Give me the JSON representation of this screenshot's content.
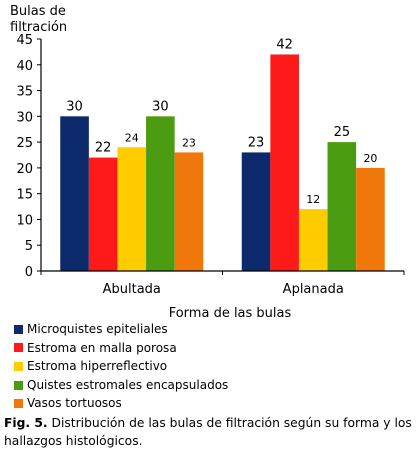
{
  "chart_data": {
    "type": "bar",
    "ylabel": "Bulas de\nfiltración",
    "xlabel": "Forma de las bulas",
    "ylim": [
      0,
      45
    ],
    "yticks": [
      0,
      5,
      10,
      15,
      20,
      25,
      30,
      35,
      40,
      45
    ],
    "categories": [
      "Abultada",
      "Aplanada"
    ],
    "series": [
      {
        "name": "Microquistes epiteliales",
        "color": "#0c2a6b",
        "values": [
          30,
          23
        ]
      },
      {
        "name": "Estroma en malla porosa",
        "color": "#ff1a1a",
        "values": [
          22,
          42
        ]
      },
      {
        "name": "Estroma hiperreflectivo",
        "color": "#ffcc00",
        "values": [
          24,
          12
        ]
      },
      {
        "name": "Quistes estromales encapsulados",
        "color": "#4c9c12",
        "values": [
          30,
          25
        ]
      },
      {
        "name": "Vasos tortuosos",
        "color": "#f0780a",
        "values": [
          23,
          20
        ]
      }
    ],
    "grid": false,
    "legend_position": "bottom-left"
  },
  "caption": {
    "label": "Fig. 5.",
    "text": " Distribución de las bulas de filtración según su forma y los hallazgos histológicos."
  }
}
